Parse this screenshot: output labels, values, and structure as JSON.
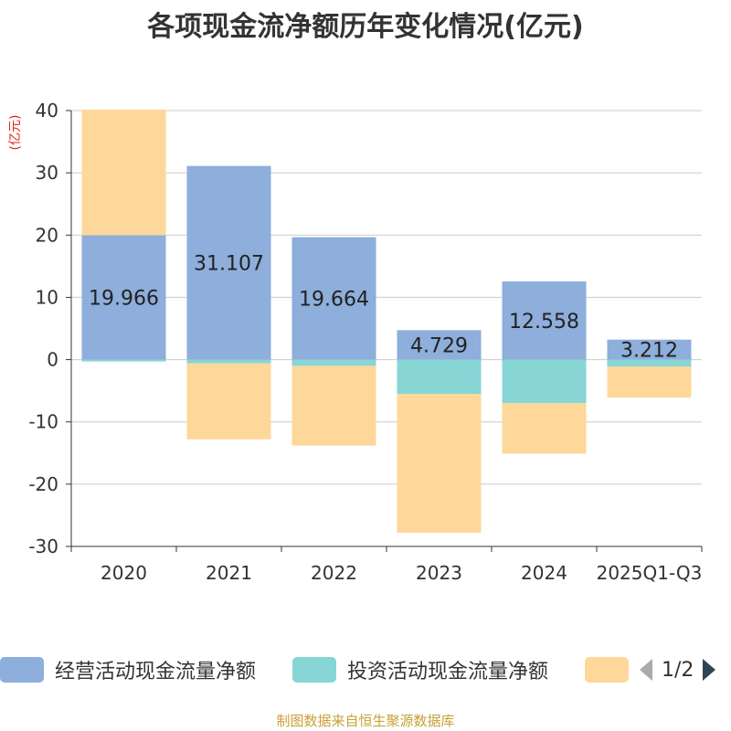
{
  "title": "各项现金流净额历年变化情况(亿元)",
  "footer": "制图数据来自恒生聚源数据库",
  "legend_page": "1/2",
  "chart_data": {
    "type": "bar",
    "stacked": true,
    "unit_label": "(亿元)",
    "categories": [
      "2020",
      "2021",
      "2022",
      "2023",
      "2024",
      "2025Q1-Q3"
    ],
    "ylim": [
      -30,
      40
    ],
    "yticks": [
      40,
      30,
      20,
      10,
      0,
      -10,
      -20,
      -30
    ],
    "series": [
      {
        "name": "经营活动现金流量净额",
        "color": "#8eaedb",
        "values": [
          19.966,
          31.107,
          19.664,
          4.729,
          12.558,
          3.212
        ],
        "show_labels": true
      },
      {
        "name": "投资活动现金流量净额",
        "color": "#88d5d6",
        "values": [
          -0.3,
          -0.6,
          -1.0,
          -5.5,
          -7.0,
          -1.1
        ],
        "show_labels": false
      },
      {
        "name": "",
        "color": "#fdd89a",
        "values": [
          20.2,
          -12.2,
          -12.8,
          -22.3,
          -8.1,
          -5.0
        ],
        "show_labels": false
      }
    ]
  }
}
